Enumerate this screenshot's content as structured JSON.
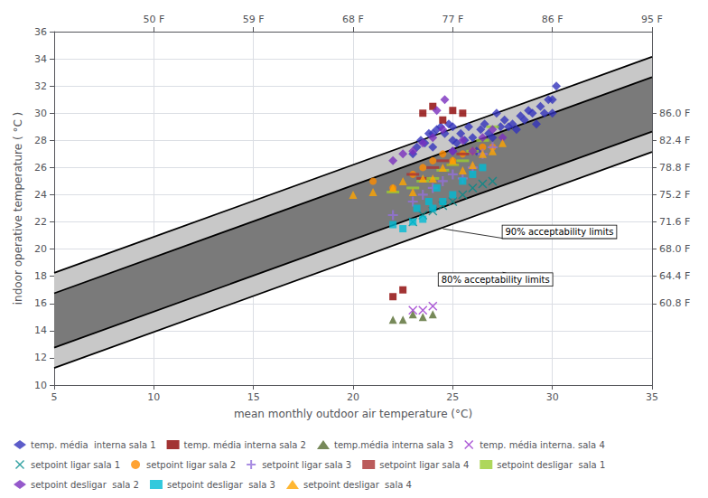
{
  "chart_data": {
    "type": "scatter",
    "xlabel": "mean monthly outdoor air temperature (°C)",
    "ylabel": "indoor operative temperature ( °C )",
    "xlim": [
      5,
      35
    ],
    "xticks": [
      5,
      10,
      15,
      20,
      25,
      30,
      35
    ],
    "ylim": [
      10,
      36
    ],
    "yticks": [
      10,
      12,
      14,
      16,
      18,
      20,
      22,
      24,
      26,
      28,
      30,
      32,
      34,
      36
    ],
    "x2lim": [
      5,
      35
    ],
    "x2ticks": [
      {
        "value": 10,
        "label": "50 F"
      },
      {
        "value": 15,
        "label": "59 F"
      },
      {
        "value": 20,
        "label": "68 F"
      },
      {
        "value": 25,
        "label": "77 F"
      },
      {
        "value": 30,
        "label": "86 F"
      },
      {
        "value": 35,
        "label": "95 F"
      }
    ],
    "y2lim": [
      10,
      36
    ],
    "y2ticks": [
      {
        "value": 16,
        "label": "60.8 F"
      },
      {
        "value": 18,
        "label": "64.4 F"
      },
      {
        "value": 20,
        "label": "68.0 F"
      },
      {
        "value": 22,
        "label": "71.6 F"
      },
      {
        "value": 24,
        "label": "75.2 F"
      },
      {
        "value": 26,
        "label": "78.8 F"
      },
      {
        "value": 28,
        "label": "82.4 F"
      },
      {
        "value": 30,
        "label": "86.0 F"
      }
    ],
    "grid": true,
    "legend": "bottom",
    "bands": [
      {
        "color": "#c8c8c8",
        "x": [
          5,
          35
        ],
        "lower": [
          11.25,
          27.15
        ],
        "upper": [
          18.25,
          34.15
        ]
      },
      {
        "color": "#7a7a7a",
        "x": [
          5,
          35
        ],
        "lower": [
          12.75,
          28.65
        ],
        "upper": [
          16.75,
          32.65
        ]
      }
    ],
    "annotations": [
      {
        "text": "90% acceptability limits",
        "x": 27.5,
        "y": 20.8,
        "target": [
          24.5,
          21.5
        ]
      },
      {
        "text": "80% acceptability limits",
        "x": 30.0,
        "y": 17.3,
        "target": [
          27.5,
          18.3
        ]
      }
    ],
    "series": [
      {
        "name": "temp. média  interna sala 1",
        "color": "#3333bb",
        "marker": "diamond",
        "x": [
          23.0,
          23.2,
          23.4,
          23.6,
          23.8,
          24.0,
          24.0,
          24.2,
          24.4,
          24.6,
          24.8,
          25.0,
          25.0,
          25.0,
          25.2,
          25.4,
          25.6,
          25.8,
          26.0,
          26.2,
          26.4,
          26.6,
          26.8,
          27.0,
          27.2,
          27.4,
          27.6,
          27.8,
          28.0,
          28.2,
          28.4,
          28.6,
          28.8,
          29.0,
          29.2,
          29.4,
          29.6,
          29.8,
          30.0,
          30.0,
          30.2
        ],
        "y": [
          27.0,
          27.5,
          28.0,
          27.8,
          28.5,
          28.5,
          27.5,
          28.8,
          29.0,
          28.5,
          29.2,
          28.0,
          27.2,
          29.0,
          27.8,
          28.5,
          28.0,
          29.0,
          28.2,
          27.2,
          28.8,
          29.2,
          28.5,
          28.2,
          30.0,
          29.0,
          29.5,
          29.0,
          29.2,
          28.8,
          29.8,
          29.5,
          30.2,
          30.0,
          29.2,
          30.5,
          30.0,
          31.0,
          31.0,
          30.0,
          32.0
        ]
      },
      {
        "name": "temp. média interna sala 2",
        "color": "#8b0000",
        "marker": "square",
        "x": [
          22.0,
          22.5,
          23.5,
          24.0,
          24.5,
          25.0,
          25.5
        ],
        "y": [
          16.5,
          17.0,
          30.0,
          30.5,
          29.5,
          30.2,
          30.0
        ]
      },
      {
        "name": "temp.média interna sala 3",
        "color": "#556b2f",
        "marker": "triangle",
        "x": [
          22.0,
          22.5,
          23.0,
          23.5,
          24.0
        ],
        "y": [
          14.8,
          14.8,
          15.2,
          15.0,
          15.2
        ]
      },
      {
        "name": "temp. média interna. sala 4",
        "color": "#9932cc",
        "marker": "x",
        "x": [
          23.0,
          23.5,
          24.0
        ],
        "y": [
          15.5,
          15.5,
          15.8
        ]
      },
      {
        "name": "setpoint ligar sala 1",
        "color": "#008b8b",
        "marker": "x",
        "x": [
          23.0,
          23.5,
          24.0,
          24.5,
          25.0,
          25.5,
          26.0,
          26.5,
          27.0
        ],
        "y": [
          22.0,
          22.5,
          22.8,
          23.2,
          23.5,
          24.0,
          24.5,
          24.8,
          25.0
        ]
      },
      {
        "name": "setpoint ligar sala 2",
        "color": "#ff8c00",
        "marker": "circle",
        "x": [
          21.0,
          22.0,
          23.0,
          23.5,
          24.0,
          24.5,
          25.0,
          25.5,
          26.0,
          26.5,
          27.0
        ],
        "y": [
          25.0,
          24.5,
          25.5,
          26.0,
          26.5,
          27.0,
          26.5,
          27.0,
          27.2,
          27.5,
          27.5
        ]
      },
      {
        "name": "setpoint ligar sala 3",
        "color": "#9370db",
        "marker": "plus",
        "x": [
          22.0,
          23.0,
          23.5,
          24.0,
          24.5,
          25.0,
          25.5,
          26.0,
          26.5,
          27.0
        ],
        "y": [
          22.5,
          23.5,
          24.0,
          24.5,
          25.0,
          25.5,
          25.2,
          26.0,
          27.0,
          27.5
        ]
      },
      {
        "name": "setpoint ligar sala 4",
        "color": "#aa3333",
        "marker": "hline",
        "x": [
          23.0,
          23.5,
          24.0,
          24.5,
          25.0,
          25.5
        ],
        "y": [
          25.5,
          25.2,
          26.0,
          26.5,
          26.2,
          27.0
        ]
      },
      {
        "name": "setpoint desligar  sala 1",
        "color": "#9acd32",
        "marker": "hline",
        "x": [
          22.0,
          23.0,
          23.5,
          24.0,
          24.5,
          25.0,
          25.5,
          26.0,
          26.5,
          27.0
        ],
        "y": [
          24.2,
          24.5,
          25.0,
          25.2,
          25.8,
          26.2,
          26.5,
          27.2,
          28.0,
          29.0
        ]
      },
      {
        "name": "setpoint desligar  sala 2",
        "color": "#7b2fbe",
        "marker": "diamond",
        "x": [
          22.0,
          22.5,
          23.0,
          23.5,
          24.0,
          24.5,
          25.0,
          25.5,
          26.0,
          26.5,
          27.0,
          27.5,
          24.2,
          24.6
        ],
        "y": [
          26.5,
          27.0,
          27.2,
          27.8,
          28.2,
          28.8,
          27.2,
          28.0,
          27.2,
          28.2,
          28.8,
          28.2,
          30.2,
          31.0
        ]
      },
      {
        "name": "setpoint desligar  sala 3",
        "color": "#00bcd4",
        "marker": "square",
        "x": [
          22.0,
          22.5,
          23.0,
          23.5,
          24.0,
          24.5,
          25.0,
          25.5,
          26.0,
          26.5,
          23.2,
          23.8,
          24.2
        ],
        "y": [
          21.8,
          21.5,
          22.0,
          22.2,
          23.0,
          23.5,
          24.0,
          25.0,
          25.5,
          26.0,
          23.0,
          23.5,
          24.5
        ]
      },
      {
        "name": "setpoint desligar  sala 4",
        "color": "#ffa500",
        "marker": "triangle",
        "x": [
          20.0,
          21.0,
          22.0,
          22.5,
          23.0,
          23.5,
          24.0,
          24.5,
          25.0,
          25.5,
          26.0,
          26.5,
          27.0,
          27.5
        ],
        "y": [
          24.0,
          24.2,
          24.5,
          25.0,
          24.2,
          25.2,
          25.2,
          26.0,
          26.5,
          25.8,
          26.2,
          27.0,
          27.2,
          27.8
        ]
      }
    ]
  }
}
